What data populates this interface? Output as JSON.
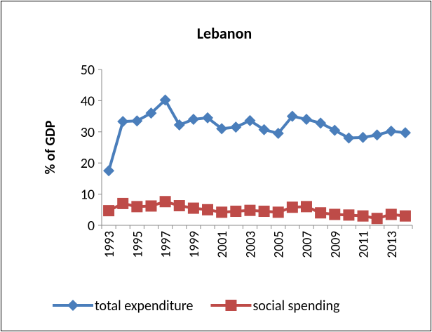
{
  "chart_data": {
    "type": "line",
    "title": "Lebanon",
    "y_label": "% of GDP",
    "categories": [
      "1993",
      null,
      "1995",
      null,
      "1997",
      null,
      "1999",
      null,
      "2001",
      null,
      "2003",
      null,
      "2005",
      null,
      "2007",
      null,
      "2009",
      null,
      "2011",
      null,
      "2013",
      null
    ],
    "series": [
      {
        "name": "total expenditure",
        "color": "#4a7ebb",
        "marker": "diamond",
        "values": [
          17.5,
          33.3,
          33.5,
          36,
          40.2,
          32.2,
          34,
          34.5,
          31,
          31.5,
          33.6,
          30.7,
          29.5,
          35,
          34,
          32.8,
          30.5,
          28,
          28.2,
          29,
          30.2,
          29.7
        ]
      },
      {
        "name": "social spending",
        "color": "#be4b48",
        "marker": "square",
        "values": [
          4.7,
          7,
          6,
          6.2,
          7.6,
          6.3,
          5.5,
          5,
          4.2,
          4.5,
          4.8,
          4.5,
          4.2,
          5.8,
          6,
          4,
          3.5,
          3.3,
          3,
          2.2,
          3.5,
          3
        ]
      }
    ],
    "ylim": [
      0,
      50
    ],
    "yticks": [
      0,
      10,
      20,
      30,
      40,
      50
    ],
    "grid": false,
    "legend": "bottom"
  }
}
